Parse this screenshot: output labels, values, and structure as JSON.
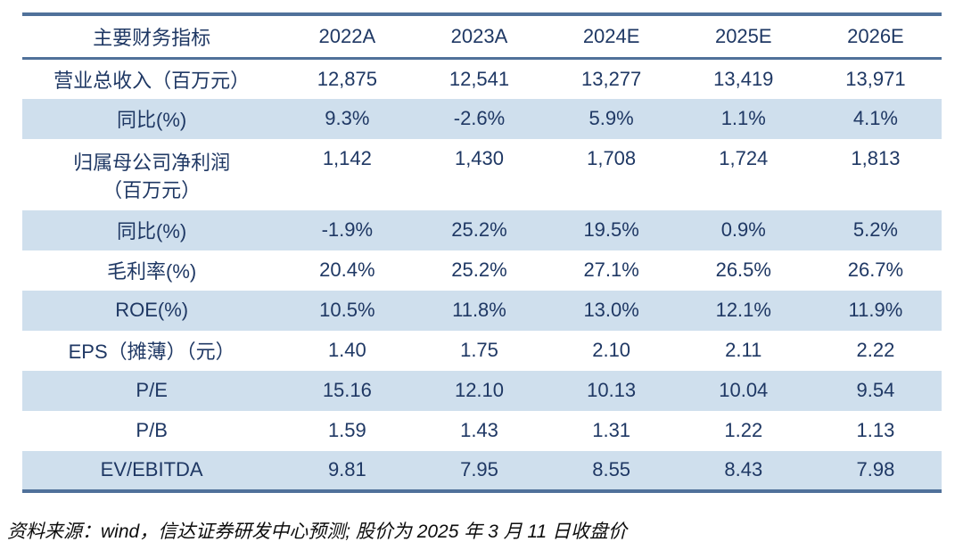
{
  "colors": {
    "text_navy": "#1f3864",
    "rule_blue": "#50719a",
    "row_shade_blue": "#cfdfed",
    "footer_text": "#0d0d0d"
  },
  "table": {
    "columns": [
      "主要财务指标",
      "2022A",
      "2023A",
      "2024E",
      "2025E",
      "2026E"
    ],
    "rows": [
      {
        "label": "营业总收入（百万元）",
        "label_line2": "",
        "values": [
          "12,875",
          "12,541",
          "13,277",
          "13,419",
          "13,971"
        ]
      },
      {
        "label": "同比(%)",
        "label_line2": "",
        "values": [
          "9.3%",
          "-2.6%",
          "5.9%",
          "1.1%",
          "4.1%"
        ]
      },
      {
        "label": "归属母公司净利润",
        "label_line2": "（百万元）",
        "values": [
          "1,142",
          "1,430",
          "1,708",
          "1,724",
          "1,813"
        ]
      },
      {
        "label": "同比(%)",
        "label_line2": "",
        "values": [
          "-1.9%",
          "25.2%",
          "19.5%",
          "0.9%",
          "5.2%"
        ]
      },
      {
        "label": "毛利率(%)",
        "label_line2": "",
        "values": [
          "20.4%",
          "25.2%",
          "27.1%",
          "26.5%",
          "26.7%"
        ]
      },
      {
        "label": "ROE(%)",
        "label_line2": "",
        "values": [
          "10.5%",
          "11.8%",
          "13.0%",
          "12.1%",
          "11.9%"
        ]
      },
      {
        "label": "EPS（摊薄）（元）",
        "label_line2": "",
        "values": [
          "1.40",
          "1.75",
          "2.10",
          "2.11",
          "2.22"
        ]
      },
      {
        "label": "P/E",
        "label_line2": "",
        "values": [
          "15.16",
          "12.10",
          "10.13",
          "10.04",
          "9.54"
        ]
      },
      {
        "label": "P/B",
        "label_line2": "",
        "values": [
          "1.59",
          "1.43",
          "1.31",
          "1.22",
          "1.13"
        ]
      },
      {
        "label": "EV/EBITDA",
        "label_line2": "",
        "values": [
          "9.81",
          "7.95",
          "8.55",
          "8.43",
          "7.98"
        ]
      }
    ]
  },
  "footer": {
    "source_note": "资料来源：wind，信达证券研发中心预测; 股价为 2025 年 3 月 11 日收盘价"
  }
}
